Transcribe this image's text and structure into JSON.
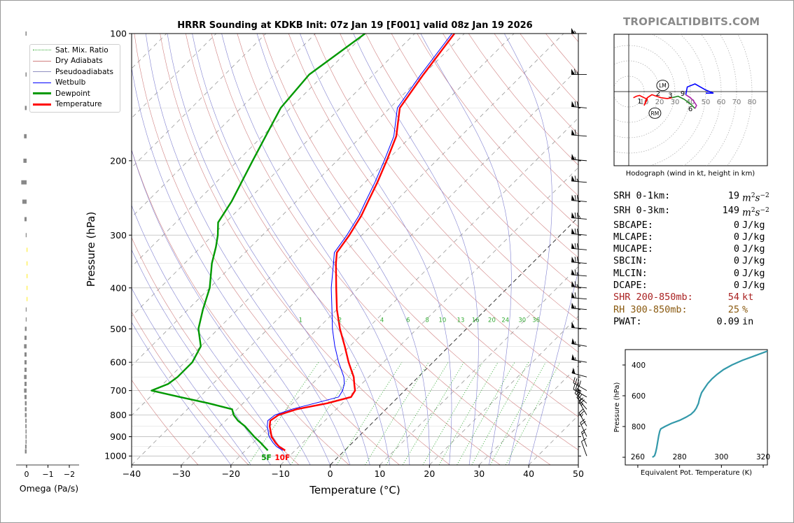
{
  "title": "HRRR Sounding at KDKB Init: 07z Jan 19 [F001] valid 08z Jan 19 2026",
  "brand": "TROPICALTIDBITS.COM",
  "colors": {
    "temperature": "#ff0000",
    "dewpoint": "#009900",
    "wetbulb": "#0000ff",
    "dry_adiabat": "#d08080",
    "pseudo_adiabat": "#8080d0",
    "mixing_ratio": "#33aa33",
    "isotherm": "#aaaaaa",
    "theta_e": "#3399aa",
    "omega": "#888888",
    "omega_highlight": "#ffee44",
    "shr": "#aa2222",
    "rh": "#8a5a10"
  },
  "chart_data": [
    {
      "type": "line",
      "name": "skewt",
      "xlabel": "Temperature (°C)",
      "ylabel": "Pressure (hPa)",
      "xlim": [
        -40,
        50
      ],
      "ylim": [
        1050,
        100
      ],
      "y_scale": "log",
      "skew": true,
      "xticks": [
        -40,
        -30,
        -20,
        -10,
        0,
        10,
        20,
        30,
        40,
        50
      ],
      "yticks": [
        100,
        200,
        300,
        400,
        500,
        600,
        700,
        800,
        900,
        1000
      ],
      "mixing_ratio_labels": [
        1,
        2,
        4,
        6,
        8,
        10,
        13,
        16,
        20,
        24,
        30,
        36
      ],
      "legend": {
        "placement": "top-left",
        "entries": [
          "Sat. Mix. Ratio",
          "Dry Adiabats",
          "Pseudoadiabats",
          "Wetbulb",
          "Dewpoint",
          "Temperature"
        ]
      },
      "surface_labels": {
        "dewpoint": "5F",
        "temperature": "10F"
      },
      "series": [
        {
          "name": "Temperature",
          "p": [
            970,
            950,
            930,
            900,
            850,
            825,
            800,
            775,
            750,
            725,
            700,
            675,
            650,
            600,
            550,
            500,
            450,
            400,
            350,
            330,
            300,
            270,
            250,
            225,
            200,
            175,
            150,
            125,
            100
          ],
          "t": [
            -12,
            -14,
            -15.5,
            -17.5,
            -20,
            -21,
            -20.5,
            -18,
            -13,
            -9.5,
            -10,
            -11.5,
            -13,
            -17,
            -21,
            -25.5,
            -30,
            -34.5,
            -39.5,
            -41.5,
            -42.5,
            -44,
            -45.5,
            -47.5,
            -50,
            -53,
            -58,
            -60,
            -62
          ]
        },
        {
          "name": "Dewpoint",
          "p": [
            970,
            950,
            930,
            900,
            850,
            825,
            800,
            775,
            750,
            725,
            700,
            675,
            650,
            600,
            550,
            500,
            450,
            400,
            350,
            320,
            300,
            280,
            250,
            200,
            150,
            125,
            100
          ],
          "t": [
            -15.5,
            -17,
            -18.5,
            -21,
            -25,
            -27.5,
            -29.5,
            -31,
            -37,
            -44,
            -51,
            -49,
            -48.5,
            -48.5,
            -50,
            -54,
            -57,
            -60,
            -64.5,
            -67,
            -69,
            -71.5,
            -73,
            -77,
            -82,
            -83,
            -80
          ]
        },
        {
          "name": "Wetbulb",
          "p": [
            970,
            950,
            930,
            900,
            850,
            825,
            800,
            775,
            750,
            725,
            700,
            675,
            650,
            600,
            550,
            500,
            450,
            400,
            350,
            330,
            300,
            270,
            250,
            225,
            200,
            175,
            150,
            125,
            100
          ],
          "t": [
            -12.5,
            -14.5,
            -16,
            -18,
            -20.5,
            -21.5,
            -21.2,
            -19,
            -15.5,
            -12,
            -12.5,
            -13.5,
            -15,
            -19,
            -23,
            -27,
            -31,
            -35.5,
            -40,
            -42,
            -43,
            -44.5,
            -46,
            -48,
            -50.5,
            -53.5,
            -58.5,
            -60.5,
            -62.5
          ]
        }
      ]
    },
    {
      "type": "bar",
      "name": "omega",
      "xlabel": "Omega (Pa/s)",
      "xticks": [
        0,
        -1,
        -2
      ],
      "p": [
        100,
        125,
        150,
        175,
        200,
        225,
        250,
        275,
        300,
        325,
        350,
        375,
        400,
        425,
        450,
        475,
        500,
        525,
        550,
        575,
        600,
        625,
        650,
        675,
        700,
        725,
        750,
        775,
        800,
        825,
        850,
        875,
        900,
        925,
        950,
        975
      ],
      "values": [
        0.05,
        0.05,
        0.08,
        0.12,
        0.15,
        0.25,
        0.2,
        0.1,
        0.04,
        -0.03,
        -0.03,
        -0.04,
        -0.03,
        -0.03,
        0.02,
        0.03,
        0.08,
        0.1,
        0.12,
        0.1,
        0.1,
        0.1,
        0.12,
        0.1,
        0.12,
        0.1,
        0.08,
        0.08,
        0.08,
        0.06,
        0.06,
        0.05,
        0.05,
        0.05,
        0.07,
        0.08
      ]
    },
    {
      "type": "line",
      "name": "hodograph",
      "xlabel": "Hodograph (wind in kt, height in km)",
      "ring_labels": [
        10,
        20,
        30,
        40,
        50,
        60,
        70,
        80
      ],
      "markers": [
        "LM",
        "RM"
      ],
      "height_labels": [
        {
          "label": "1",
          "u": 7,
          "v": -6
        },
        {
          "label": "2",
          "u": 19,
          "v": -1
        },
        {
          "label": "3",
          "u": 27,
          "v": -2
        },
        {
          "label": "6",
          "u": 40,
          "v": -11
        },
        {
          "label": "9",
          "u": 35,
          "v": -1
        }
      ],
      "lm": {
        "u": 22,
        "v": 4
      },
      "rm": {
        "u": 17,
        "v": -14
      },
      "series": [
        {
          "name": "0-1km",
          "color": "#ff0000",
          "u": [
            3,
            5,
            7,
            10,
            12,
            11,
            10
          ],
          "v": [
            -4,
            -3,
            -2.5,
            -4,
            -5,
            -7,
            -9
          ]
        },
        {
          "name": "1-3km",
          "color": "#ff0000",
          "u": [
            10,
            12,
            15,
            18,
            21,
            25,
            28
          ],
          "v": [
            -9,
            -4,
            -2,
            -3,
            -4,
            -4.5,
            -4
          ]
        },
        {
          "name": "3-6km",
          "color": "#228822",
          "u": [
            28,
            32,
            36,
            40,
            43
          ],
          "v": [
            -4,
            -3,
            -5,
            -8,
            -11
          ]
        },
        {
          "name": "6-9km",
          "color": "#aa22aa",
          "u": [
            43,
            44,
            42,
            40,
            37
          ],
          "v": [
            -11,
            -9,
            -6,
            -4,
            -2
          ]
        },
        {
          "name": "9-12km",
          "color": "#0000ff",
          "u": [
            37,
            38,
            43,
            50,
            55,
            50
          ],
          "v": [
            -2,
            3,
            5,
            1,
            -1,
            -1
          ]
        }
      ]
    },
    {
      "type": "line",
      "name": "theta_e",
      "xlabel": "Equivalent Pot. Temperature (K)",
      "ylabel": "Pressure (hPa)",
      "xlim": [
        254,
        322
      ],
      "ylim": [
        1050,
        300
      ],
      "xticks": [
        260,
        280,
        300,
        320
      ],
      "yticks": [
        400,
        600,
        800
      ],
      "series": [
        {
          "name": "Theta-E",
          "p": [
            1000,
            990,
            970,
            940,
            900,
            860,
            830,
            815,
            800,
            780,
            760,
            740,
            720,
            700,
            680,
            650,
            620,
            580,
            550,
            520,
            490,
            460,
            430,
            400,
            370,
            340,
            310
          ],
          "theta": [
            267,
            268,
            268.5,
            269,
            269.5,
            270,
            270.5,
            271,
            273,
            276,
            280,
            283,
            285.5,
            287,
            288,
            289,
            289.5,
            290.5,
            292,
            293.5,
            295.5,
            298,
            301,
            305,
            310,
            316,
            322
          ]
        }
      ]
    }
  ],
  "indices": [
    {
      "label": "SRH 0-1km:",
      "value": "19",
      "unit": "m2s-2",
      "tone": "normal"
    },
    {
      "label": "SRH 0-3km:",
      "value": "149",
      "unit": "m2s-2",
      "tone": "normal"
    },
    {
      "label": "SBCAPE:",
      "value": "0",
      "unit": "J/kg",
      "tone": "normal"
    },
    {
      "label": "MLCAPE:",
      "value": "0",
      "unit": "J/kg",
      "tone": "normal"
    },
    {
      "label": "MUCAPE:",
      "value": "0",
      "unit": "J/kg",
      "tone": "normal"
    },
    {
      "label": "SBCIN:",
      "value": "0",
      "unit": "J/kg",
      "tone": "normal"
    },
    {
      "label": "MLCIN:",
      "value": "0",
      "unit": "J/kg",
      "tone": "normal"
    },
    {
      "label": "DCAPE:",
      "value": "0",
      "unit": "J/kg",
      "tone": "normal"
    },
    {
      "label": "SHR 200-850mb:",
      "value": "54",
      "unit": "kt",
      "tone": "shr"
    },
    {
      "label": "RH 300-850mb:",
      "value": "25",
      "unit": "%",
      "tone": "rh"
    },
    {
      "label": "PWAT:",
      "value": "0.09",
      "unit": "in",
      "tone": "normal"
    }
  ],
  "wind_barbs": [
    {
      "p": 100,
      "dir": 270,
      "kt": 55
    },
    {
      "p": 125,
      "dir": 270,
      "kt": 65
    },
    {
      "p": 150,
      "dir": 275,
      "kt": 70
    },
    {
      "p": 175,
      "dir": 275,
      "kt": 60
    },
    {
      "p": 200,
      "dir": 275,
      "kt": 55
    },
    {
      "p": 225,
      "dir": 275,
      "kt": 65
    },
    {
      "p": 250,
      "dir": 275,
      "kt": 70
    },
    {
      "p": 275,
      "dir": 275,
      "kt": 75
    },
    {
      "p": 300,
      "dir": 275,
      "kt": 70
    },
    {
      "p": 325,
      "dir": 275,
      "kt": 70
    },
    {
      "p": 350,
      "dir": 275,
      "kt": 70
    },
    {
      "p": 375,
      "dir": 275,
      "kt": 65
    },
    {
      "p": 400,
      "dir": 275,
      "kt": 65
    },
    {
      "p": 425,
      "dir": 275,
      "kt": 60
    },
    {
      "p": 450,
      "dir": 275,
      "kt": 55
    },
    {
      "p": 500,
      "dir": 275,
      "kt": 50
    },
    {
      "p": 550,
      "dir": 280,
      "kt": 55
    },
    {
      "p": 600,
      "dir": 280,
      "kt": 55
    },
    {
      "p": 650,
      "dir": 285,
      "kt": 50
    },
    {
      "p": 700,
      "dir": 300,
      "kt": 40
    },
    {
      "p": 725,
      "dir": 300,
      "kt": 35
    },
    {
      "p": 750,
      "dir": 310,
      "kt": 30
    },
    {
      "p": 775,
      "dir": 320,
      "kt": 25
    },
    {
      "p": 800,
      "dir": 330,
      "kt": 25
    },
    {
      "p": 850,
      "dir": 330,
      "kt": 25
    },
    {
      "p": 900,
      "dir": 335,
      "kt": 20
    },
    {
      "p": 950,
      "dir": 340,
      "kt": 15
    },
    {
      "p": 1000,
      "dir": 340,
      "kt": 10
    }
  ]
}
